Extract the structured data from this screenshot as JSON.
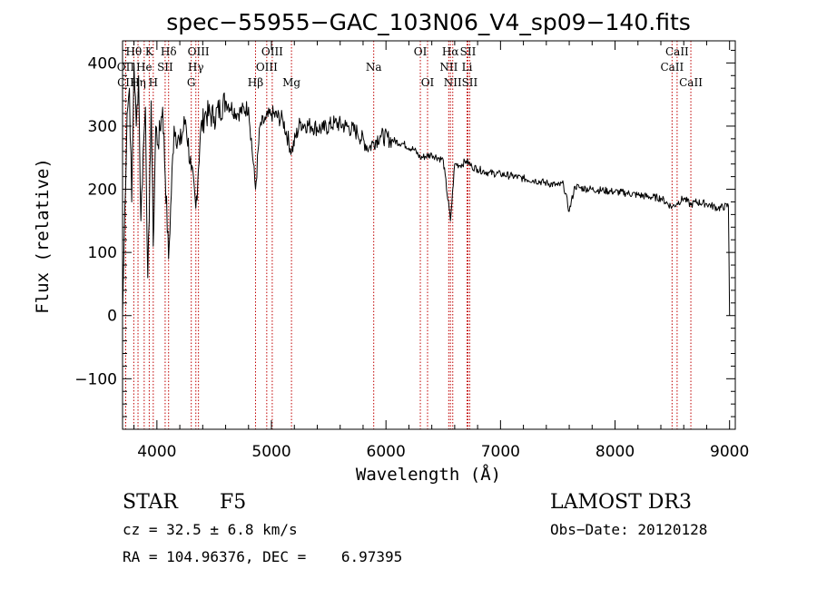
{
  "chart_data": {
    "type": "line",
    "title": "spec−55955−GAC_103N06_V4_sp09−140.fits",
    "xlabel": "Wavelength (Å)",
    "ylabel": "Flux (relative)",
    "xlim": [
      3700,
      9050
    ],
    "ylim": [
      -180,
      435
    ],
    "x_ticks": [
      4000,
      5000,
      6000,
      7000,
      8000,
      9000
    ],
    "y_ticks": [
      -100,
      0,
      100,
      200,
      300,
      400
    ],
    "series": [
      {
        "name": "flux",
        "x": [
          3700,
          3720,
          3740,
          3760,
          3780,
          3800,
          3820,
          3840,
          3860,
          3880,
          3900,
          3920,
          3933,
          3950,
          3968,
          3990,
          4010,
          4050,
          4102,
          4150,
          4200,
          4250,
          4300,
          4340,
          4380,
          4420,
          4500,
          4600,
          4700,
          4800,
          4861,
          4900,
          4950,
          5000,
          5100,
          5175,
          5250,
          5350,
          5450,
          5550,
          5650,
          5750,
          5850,
          5893,
          5950,
          6050,
          6150,
          6250,
          6300,
          6400,
          6500,
          6563,
          6600,
          6650,
          6700,
          6750,
          6800,
          6900,
          7000,
          7100,
          7200,
          7300,
          7400,
          7500,
          7550,
          7600,
          7650,
          7700,
          7800,
          7900,
          8000,
          8100,
          8200,
          8300,
          8400,
          8498,
          8542,
          8600,
          8662,
          8700,
          8800,
          8900,
          8990,
          9000
        ],
        "y": [
          0,
          170,
          320,
          360,
          180,
          400,
          300,
          380,
          150,
          260,
          330,
          60,
          150,
          340,
          110,
          300,
          270,
          330,
          90,
          300,
          270,
          310,
          230,
          170,
          290,
          320,
          315,
          340,
          320,
          330,
          200,
          300,
          310,
          320,
          310,
          260,
          305,
          300,
          295,
          305,
          300,
          290,
          265,
          275,
          285,
          278,
          272,
          262,
          250,
          255,
          246,
          150,
          240,
          238,
          245,
          236,
          232,
          226,
          224,
          221,
          217,
          214,
          210,
          206,
          208,
          165,
          205,
          202,
          200,
          198,
          196,
          194,
          191,
          188,
          186,
          172,
          178,
          186,
          175,
          180,
          177,
          170,
          174,
          0
        ]
      }
    ],
    "lines": [
      {
        "name": "Hε",
        "wl": 3727,
        "label": "CII",
        "row": 3
      },
      {
        "name": "OII",
        "wl": 3727,
        "label": "OII",
        "row": 2
      },
      {
        "name": "Hθ",
        "wl": 3798,
        "label": "Hθ",
        "row": 1
      },
      {
        "name": "Hη",
        "wl": 3835,
        "label": "Hη",
        "row": 3
      },
      {
        "name": "Hε label",
        "wl": 3889,
        "label": "He",
        "row": 2
      },
      {
        "name": "K",
        "wl": 3933,
        "label": "K",
        "row": 1
      },
      {
        "name": "H",
        "wl": 3968,
        "label": "H",
        "row": 3
      },
      {
        "name": "SII 4072",
        "wl": 4072,
        "label": "SII",
        "row": 2
      },
      {
        "name": "Hδ",
        "wl": 4102,
        "label": "Hδ",
        "row": 1
      },
      {
        "name": "G",
        "wl": 4300,
        "label": "G",
        "row": 3
      },
      {
        "name": "Hγ",
        "wl": 4340,
        "label": "Hγ",
        "row": 2
      },
      {
        "name": "OIII 4363",
        "wl": 4363,
        "label": "OIII",
        "row": 1
      },
      {
        "name": "Hβ",
        "wl": 4861,
        "label": "Hβ",
        "row": 3
      },
      {
        "name": "OIII 4959",
        "wl": 4959,
        "label": "OIII",
        "row": 2
      },
      {
        "name": "OIII 5007",
        "wl": 5007,
        "label": "OIII",
        "row": 1
      },
      {
        "name": "Mg",
        "wl": 5175,
        "label": "Mg",
        "row": 3
      },
      {
        "name": "Na",
        "wl": 5893,
        "label": "Na",
        "row": 2
      },
      {
        "name": "OI 6300",
        "wl": 6300,
        "label": "OI",
        "row": 1
      },
      {
        "name": "OI 6363",
        "wl": 6363,
        "label": "OI",
        "row": 3
      },
      {
        "name": "NII 6548",
        "wl": 6548,
        "label": "NII",
        "row": 2
      },
      {
        "name": "Hα",
        "wl": 6563,
        "label": "Hα",
        "row": 1
      },
      {
        "name": "NII 6583",
        "wl": 6583,
        "label": "NII",
        "row": 3
      },
      {
        "name": "Li",
        "wl": 6708,
        "label": "Li",
        "row": 2
      },
      {
        "name": "SII 6716",
        "wl": 6716,
        "label": "SII",
        "row": 1
      },
      {
        "name": "SII 6731",
        "wl": 6731,
        "label": "SII",
        "row": 3
      },
      {
        "name": "CaII 8498",
        "wl": 8498,
        "label": "CaII",
        "row": 2
      },
      {
        "name": "CaII 8542",
        "wl": 8542,
        "label": "CaII",
        "row": 1
      },
      {
        "name": "CaII 8662",
        "wl": 8662,
        "label": "CaII",
        "row": 3
      }
    ]
  },
  "footer": {
    "class": "STAR",
    "subclass": "F5",
    "survey": "LAMOST DR3",
    "cz": "cz = 32.5 ± 6.8 km/s",
    "obsdate": "Obs−Date: 20120128",
    "radec": "RA = 104.96376, DEC =    6.97395"
  },
  "colors": {
    "axis": "#000000",
    "spectrum": "#000000",
    "line_marker": "#c00000"
  }
}
